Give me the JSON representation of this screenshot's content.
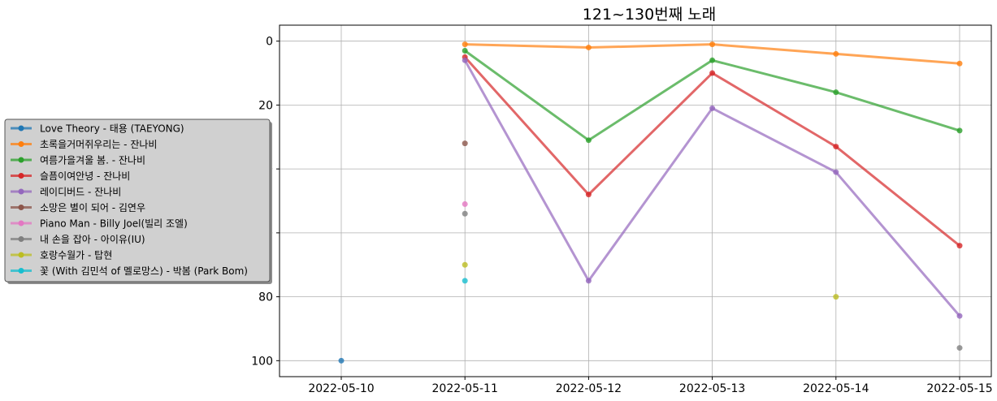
{
  "chart_data": {
    "type": "line",
    "title": "121~130번째 노래",
    "xlabel": "",
    "ylabel": "",
    "x": [
      "2022-05-10",
      "2022-05-11",
      "2022-05-12",
      "2022-05-13",
      "2022-05-14",
      "2022-05-15"
    ],
    "ylim": [
      105,
      -5
    ],
    "y_inverted": true,
    "yticks": [
      0,
      20,
      40,
      60,
      80,
      100
    ],
    "grid": true,
    "legend_position": "left",
    "series": [
      {
        "name": "Love Theory - 태용 (TAEYONG)",
        "color": "#1f77b4",
        "values": [
          100,
          null,
          null,
          null,
          null,
          null
        ]
      },
      {
        "name": "초록을거머쥐우리는 - 잔나비",
        "color": "#ff7f0e",
        "values": [
          null,
          1,
          2,
          1,
          4,
          7
        ]
      },
      {
        "name": "여름가을겨울 봄. - 잔나비",
        "color": "#2ca02c",
        "values": [
          null,
          3,
          31,
          6,
          16,
          28
        ]
      },
      {
        "name": "슬픔이여안녕 - 잔나비",
        "color": "#d62728",
        "values": [
          null,
          5,
          48,
          10,
          33,
          64
        ]
      },
      {
        "name": "레이디버드 - 잔나비",
        "color": "#9467bd",
        "values": [
          null,
          6,
          75,
          21,
          41,
          86
        ]
      },
      {
        "name": "소망은 별이 되어 - 김연우",
        "color": "#8c564b",
        "values": [
          null,
          32,
          null,
          null,
          null,
          null
        ]
      },
      {
        "name": "Piano Man - Billy Joel(빌리 조엘)",
        "color": "#e377c2",
        "values": [
          null,
          51,
          null,
          null,
          null,
          null
        ]
      },
      {
        "name": "내 손을 잡아 - 아이유(IU)",
        "color": "#7f7f7f",
        "values": [
          null,
          54,
          null,
          null,
          null,
          96
        ]
      },
      {
        "name": "호랑수월가 - 탑현",
        "color": "#bcbd22",
        "values": [
          null,
          70,
          null,
          null,
          80,
          null
        ]
      },
      {
        "name": "꽃 (With 김민석 of 멜로망스) - 박봄 (Park Bom)",
        "color": "#17becf",
        "values": [
          null,
          75,
          null,
          null,
          null,
          null
        ]
      }
    ]
  }
}
